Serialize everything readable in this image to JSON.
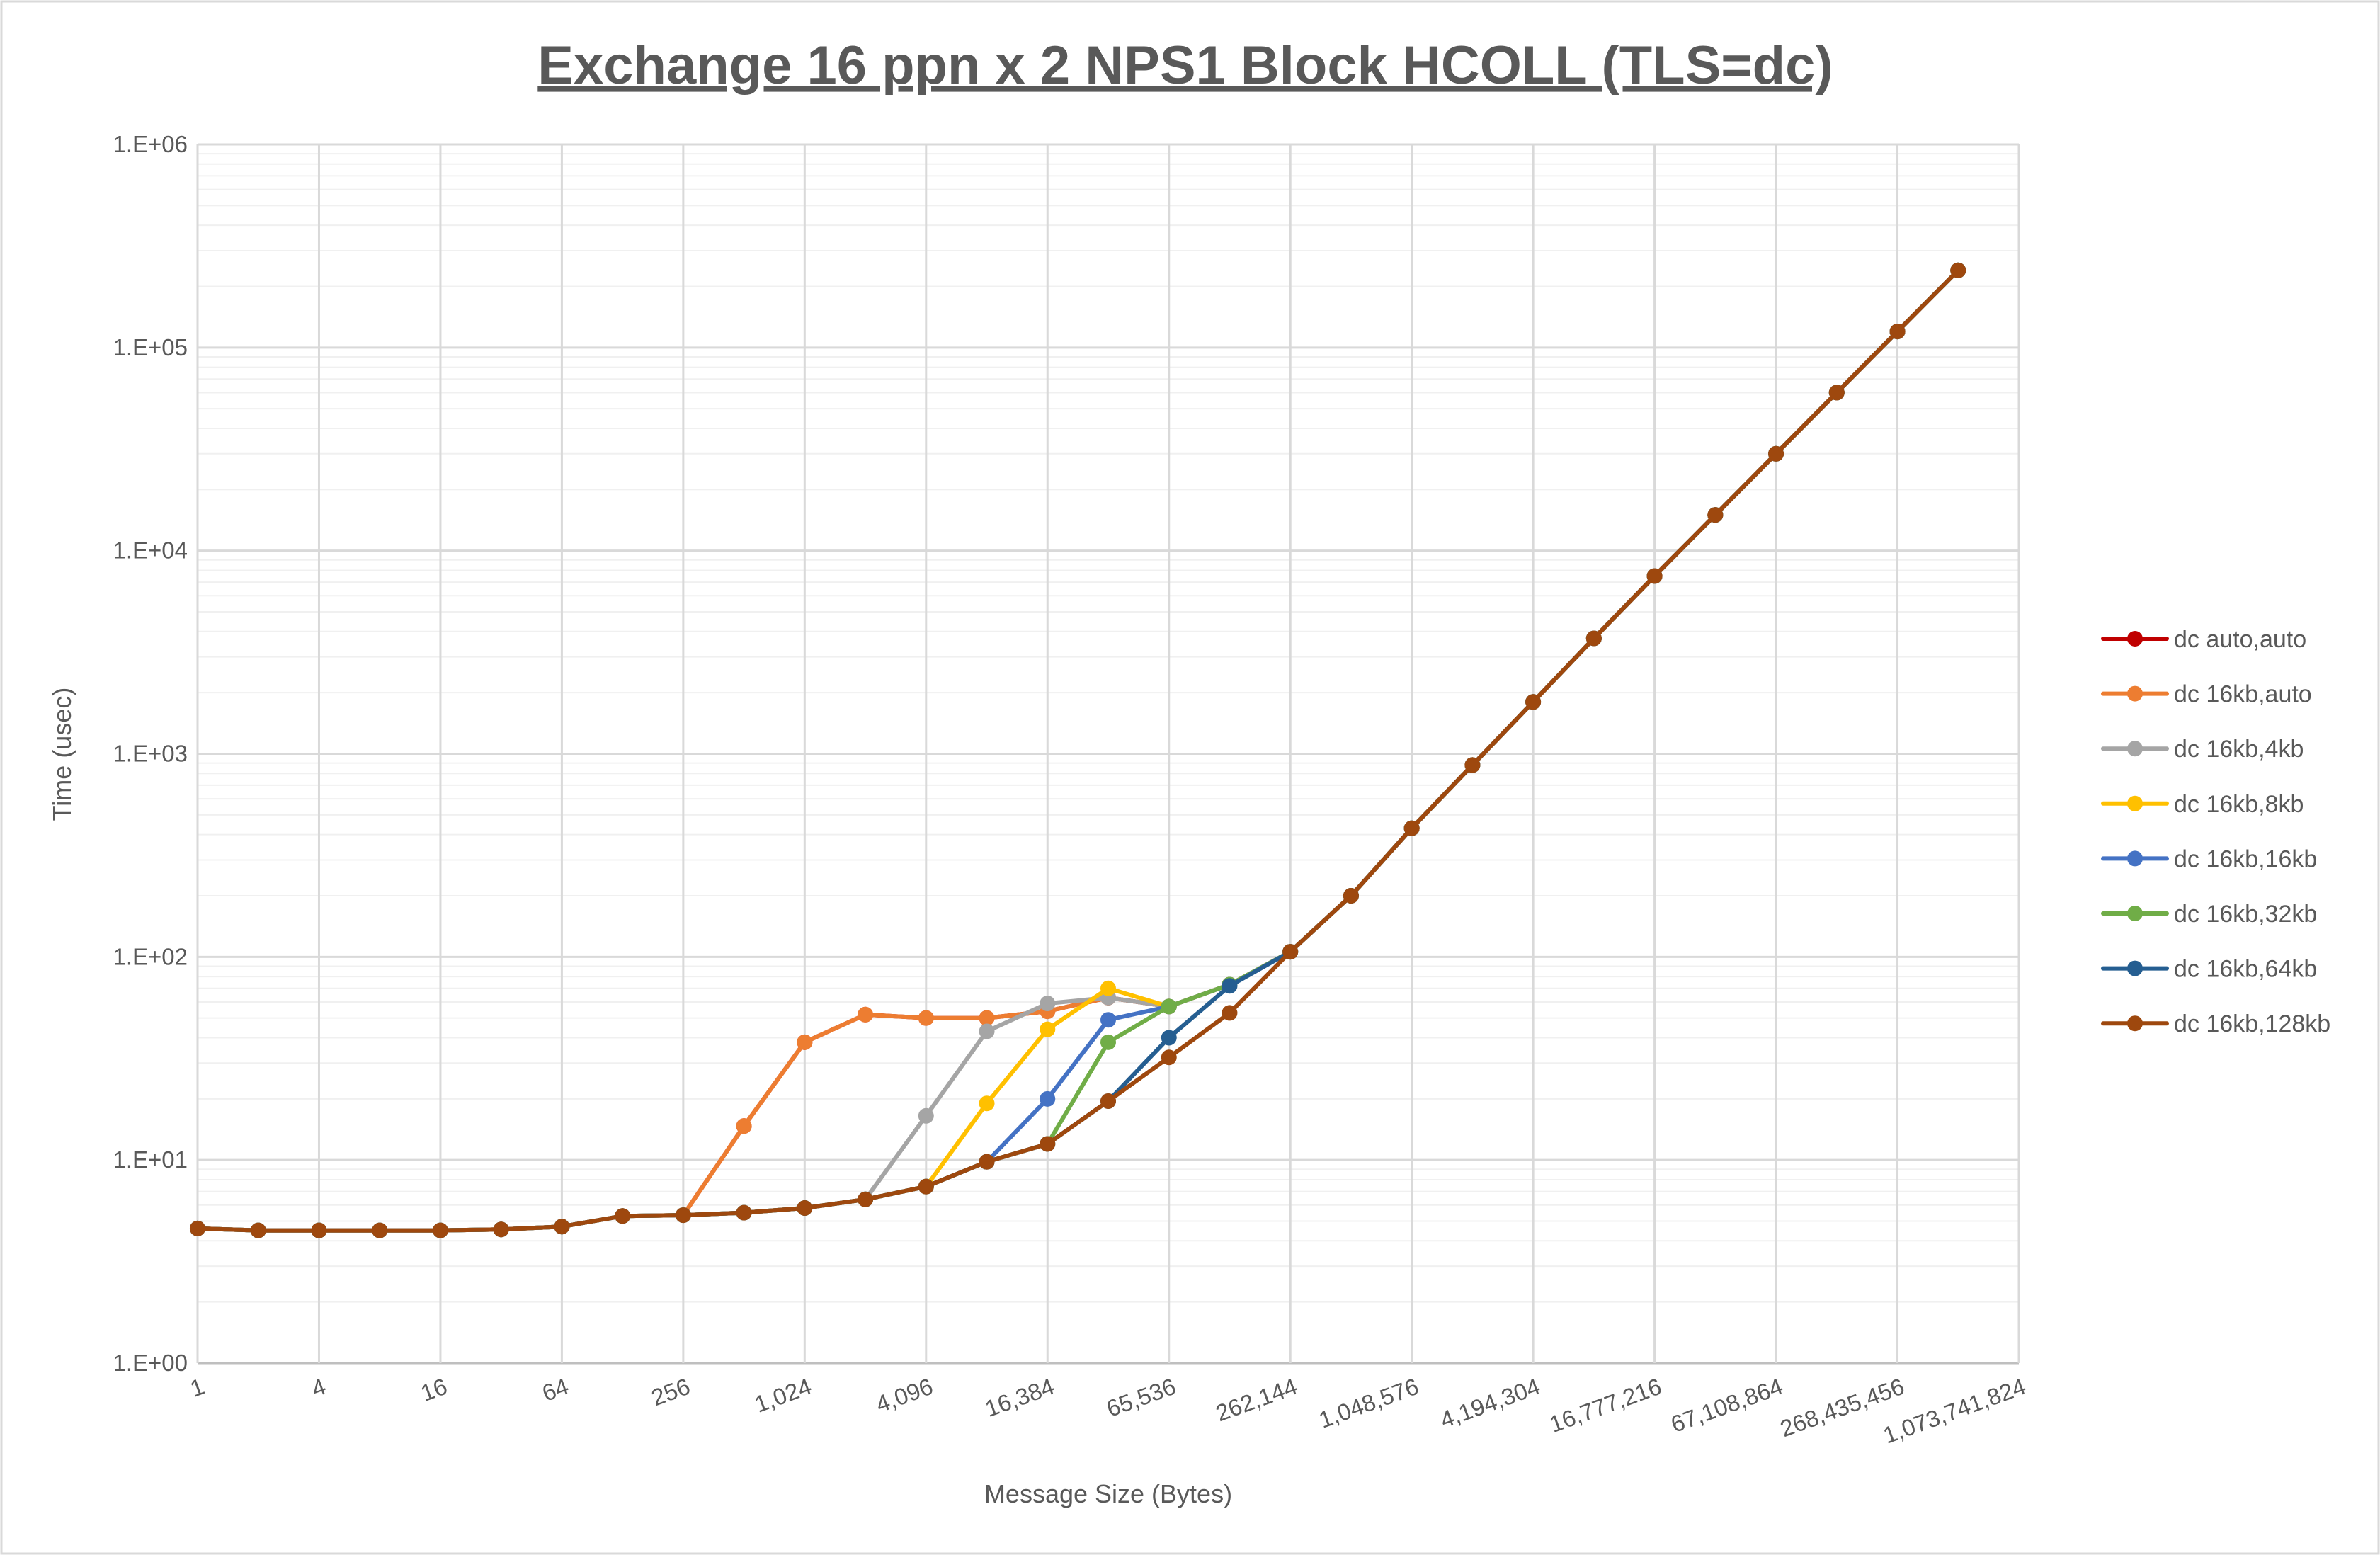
{
  "chart_data": {
    "type": "line",
    "title": "Exchange 16 ppn x 2 NPS1 Block HCOLL (TLS=dc)",
    "xlabel": "Message Size (Bytes)",
    "ylabel": "Time (usec)",
    "x_scale": "log2",
    "y_scale": "log10",
    "xlim": [
      1,
      1073741824
    ],
    "ylim": [
      1,
      1000000
    ],
    "grid": true,
    "legend_position": "right",
    "x_tick_labels": [
      "1",
      "4",
      "16",
      "64",
      "256",
      "1,024",
      "4,096",
      "16,384",
      "65,536",
      "262,144",
      "1,048,576",
      "4,194,304",
      "16,777,216",
      "67,108,864",
      "268,435,456",
      "1,073,741,824"
    ],
    "y_tick_labels": [
      "1.E+00",
      "1.E+01",
      "1.E+02",
      "1.E+03",
      "1.E+04",
      "1.E+05",
      "1.E+06"
    ],
    "x": [
      1,
      2,
      4,
      8,
      16,
      32,
      64,
      128,
      256,
      512,
      1024,
      2048,
      4096,
      8192,
      16384,
      32768,
      65536,
      131072,
      262144,
      524288,
      1048576,
      2097152,
      4194304,
      8388608,
      16777216,
      33554432,
      67108864,
      134217728,
      268435456,
      536870912
    ],
    "series": [
      {
        "name": "dc auto,auto",
        "color": "#C00000",
        "values": [
          4.6,
          4.5,
          4.5,
          4.5,
          4.5,
          4.55,
          4.7,
          5.3,
          5.35,
          14.7,
          38,
          52,
          50,
          50,
          54,
          63,
          57,
          73,
          106,
          200,
          430,
          880,
          1800,
          3700,
          7500,
          15000,
          30000,
          60000,
          120000,
          240000
        ]
      },
      {
        "name": "dc 16kb,auto",
        "color": "#ED7D31",
        "values": [
          4.6,
          4.5,
          4.5,
          4.5,
          4.5,
          4.55,
          4.7,
          5.3,
          5.35,
          14.7,
          38,
          52,
          50,
          50,
          54,
          63,
          57,
          73,
          106,
          200,
          430,
          880,
          1800,
          3700,
          7500,
          15000,
          30000,
          60000,
          120000,
          240000
        ]
      },
      {
        "name": "dc 16kb,4kb",
        "color": "#A5A5A5",
        "values": [
          4.6,
          4.5,
          4.5,
          4.5,
          4.5,
          4.55,
          4.7,
          5.3,
          5.35,
          5.5,
          5.8,
          6.4,
          16.5,
          43,
          59,
          63,
          57,
          73,
          106,
          200,
          430,
          880,
          1800,
          3700,
          7500,
          15000,
          30000,
          60000,
          120000,
          240000
        ]
      },
      {
        "name": "dc 16kb,8kb",
        "color": "#FFC000",
        "values": [
          4.6,
          4.5,
          4.5,
          4.5,
          4.5,
          4.55,
          4.7,
          5.3,
          5.35,
          5.5,
          5.8,
          6.4,
          7.4,
          19,
          44,
          70,
          57,
          73,
          106,
          200,
          430,
          880,
          1800,
          3700,
          7500,
          15000,
          30000,
          60000,
          120000,
          240000
        ]
      },
      {
        "name": "dc 16kb,16kb",
        "color": "#4472C4",
        "values": [
          4.6,
          4.5,
          4.5,
          4.5,
          4.5,
          4.55,
          4.7,
          5.3,
          5.35,
          5.5,
          5.8,
          6.4,
          7.4,
          9.8,
          20,
          49,
          57,
          73,
          106,
          200,
          430,
          880,
          1800,
          3700,
          7500,
          15000,
          30000,
          60000,
          120000,
          240000
        ]
      },
      {
        "name": "dc 16kb,32kb",
        "color": "#70AD47",
        "values": [
          4.6,
          4.5,
          4.5,
          4.5,
          4.5,
          4.55,
          4.7,
          5.3,
          5.35,
          5.5,
          5.8,
          6.4,
          7.4,
          9.8,
          12,
          38,
          57,
          73,
          106,
          200,
          430,
          880,
          1800,
          3700,
          7500,
          15000,
          30000,
          60000,
          120000,
          240000
        ]
      },
      {
        "name": "dc 16kb,64kb",
        "color": "#255E91",
        "values": [
          4.6,
          4.5,
          4.5,
          4.5,
          4.5,
          4.55,
          4.7,
          5.3,
          5.35,
          5.5,
          5.8,
          6.4,
          7.4,
          9.8,
          12,
          19.5,
          40,
          72,
          106,
          200,
          430,
          880,
          1800,
          3700,
          7500,
          15000,
          30000,
          60000,
          120000,
          240000
        ]
      },
      {
        "name": "dc 16kb,128kb",
        "color": "#9E480E",
        "values": [
          4.6,
          4.5,
          4.5,
          4.5,
          4.5,
          4.55,
          4.7,
          5.3,
          5.35,
          5.5,
          5.8,
          6.4,
          7.4,
          9.8,
          12,
          19.5,
          32,
          53,
          106,
          200,
          430,
          880,
          1800,
          3700,
          7500,
          15000,
          30000,
          60000,
          120000,
          240000
        ]
      }
    ]
  }
}
